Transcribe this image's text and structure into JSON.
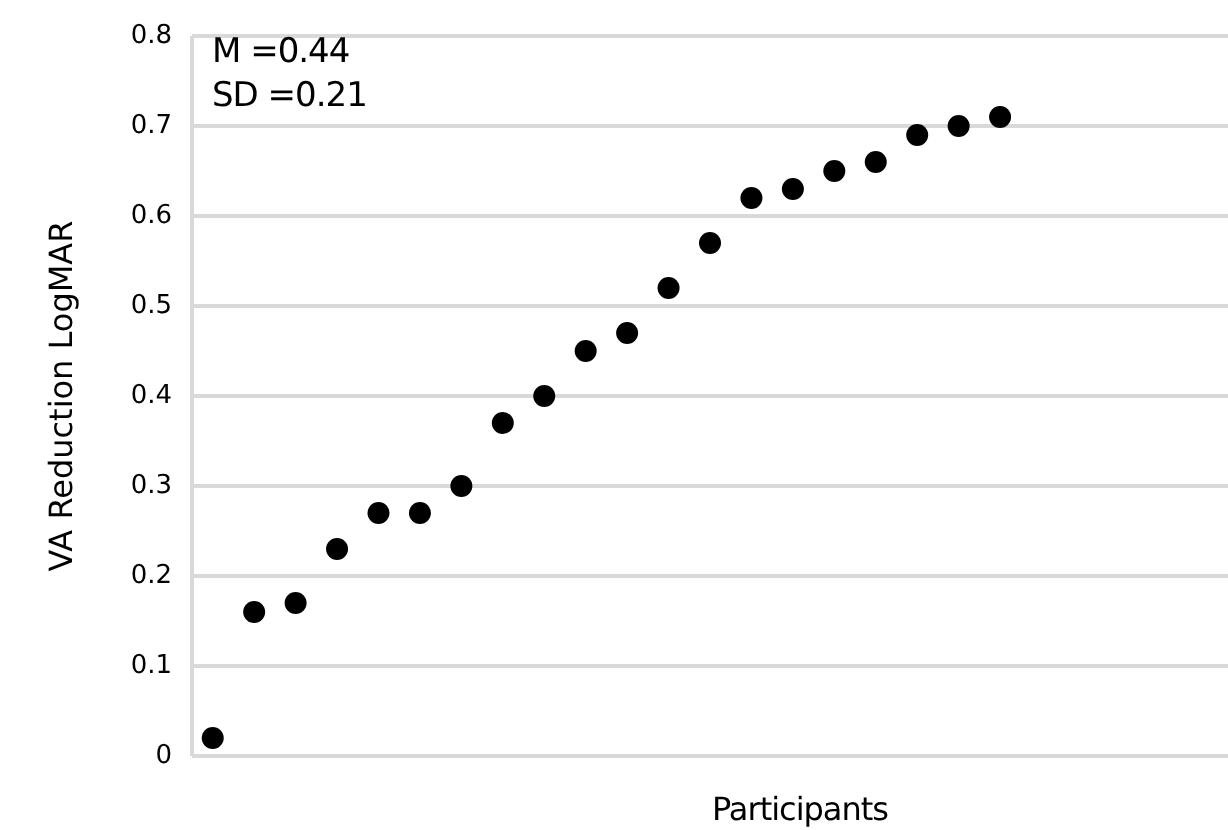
{
  "chart_data": {
    "type": "scatter",
    "xlabel": "Participants",
    "ylabel": "VA Reduction LogMAR",
    "annotations": [
      "M =0.44",
      "SD =0.21"
    ],
    "categories": [
      null,
      null,
      null,
      null,
      null,
      null,
      null,
      null,
      null,
      null,
      null,
      null,
      null,
      null,
      null,
      null,
      null,
      null,
      null,
      null,
      null,
      null,
      null,
      null,
      null
    ],
    "series": [
      {
        "color": "#000000",
        "values": [
          0.02,
          0.16,
          0.17,
          0.23,
          0.27,
          0.27,
          0.3,
          0.37,
          0.4,
          0.45,
          0.47,
          0.52,
          0.57,
          0.62,
          0.63,
          0.65,
          0.66,
          0.69,
          0.7,
          0.71,
          null,
          null,
          null,
          null,
          null
        ]
      }
    ],
    "ylim": [
      0,
      0.8
    ],
    "yticks": [
      0,
      0.1,
      0.2,
      0.3,
      0.4,
      0.5,
      0.6,
      0.7,
      0.8
    ],
    "grid": "y",
    "marker": "circle"
  }
}
